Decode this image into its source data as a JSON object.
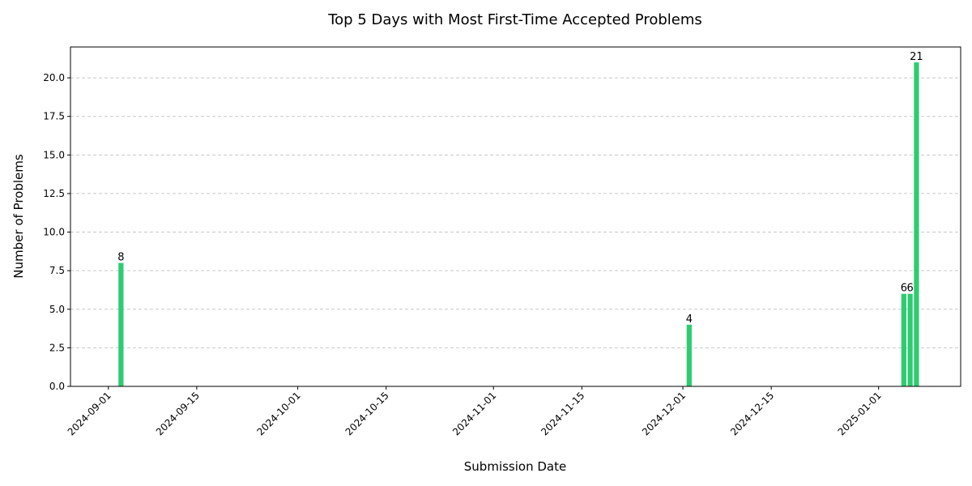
{
  "chart_data": {
    "type": "bar",
    "title": "Top 5 Days with Most First-Time Accepted Problems",
    "xlabel": "Submission Date",
    "ylabel": "Number of Problems",
    "x_axis_type": "date",
    "xlim": [
      "2024-08-26",
      "2025-01-14"
    ],
    "ylim": [
      0,
      22
    ],
    "grid": "y-dashed",
    "bar_color": "#2ecc71",
    "x_ticks": [
      "2024-09-01",
      "2024-09-15",
      "2024-10-01",
      "2024-10-15",
      "2024-11-01",
      "2024-11-15",
      "2024-12-01",
      "2024-12-15",
      "2025-01-01"
    ],
    "y_ticks": [
      "0.0",
      "2.5",
      "5.0",
      "7.5",
      "10.0",
      "12.5",
      "15.0",
      "17.5",
      "20.0"
    ],
    "bars": [
      {
        "date": "2024-09-03",
        "value": 8,
        "label": "8"
      },
      {
        "date": "2024-12-02",
        "value": 4,
        "label": "4"
      },
      {
        "date": "2025-01-05",
        "value": 6,
        "label": "6"
      },
      {
        "date": "2025-01-06",
        "value": 6,
        "label": "6"
      },
      {
        "date": "2025-01-07",
        "value": 21,
        "label": "21"
      }
    ]
  }
}
